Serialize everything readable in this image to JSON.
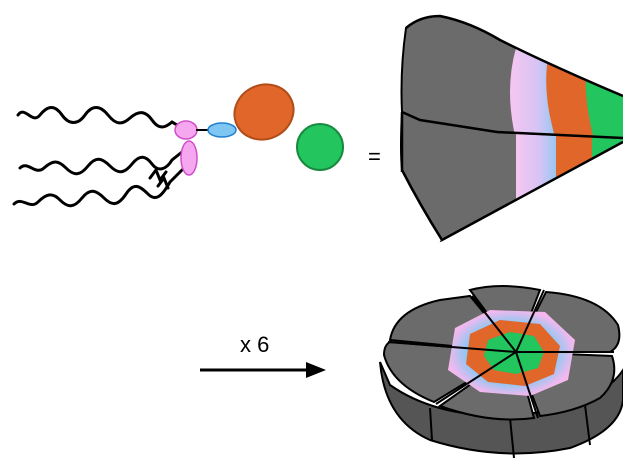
{
  "equals_sign": "=",
  "multiplier_label": "x 6",
  "colors": {
    "gray": "#6b6b6b",
    "orange": "#e0662a",
    "green": "#22c55e",
    "pink": "#f0b8ec",
    "blue": "#7fc6f2",
    "magenta": "#f08ee8",
    "outline": "#000000"
  }
}
